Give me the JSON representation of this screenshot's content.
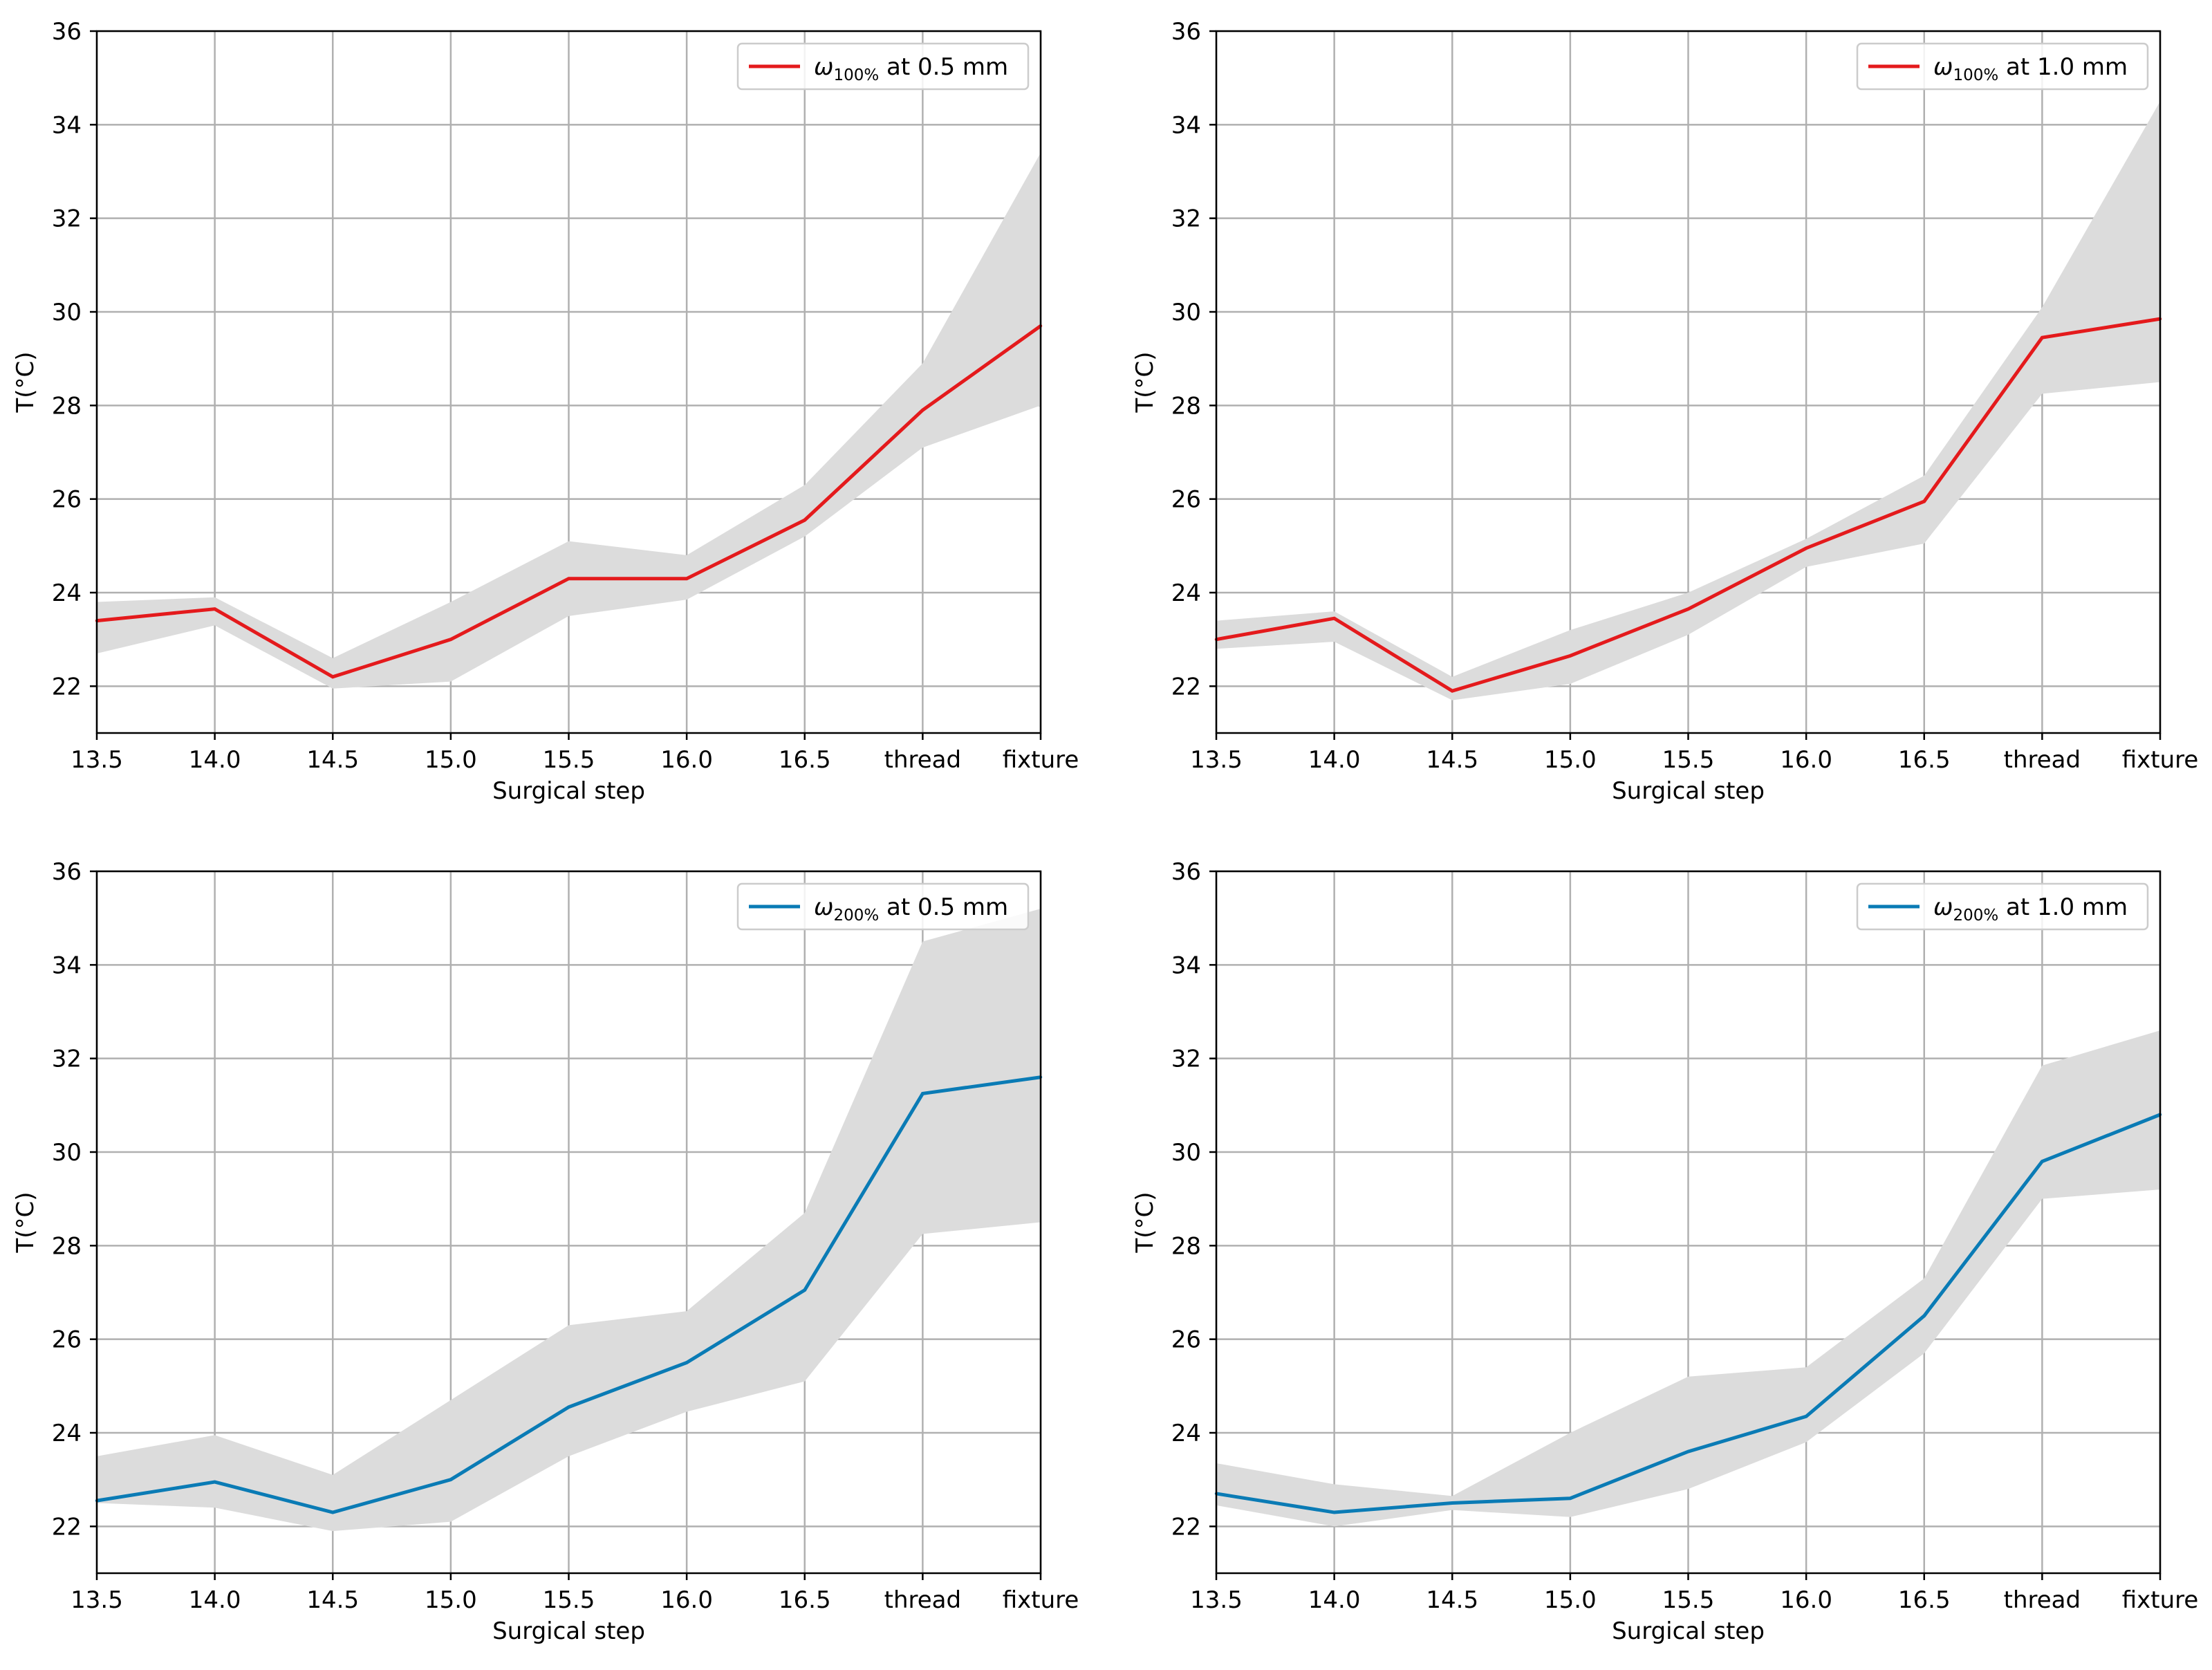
{
  "colors": {
    "red_series": "#e41a1c",
    "blue_series": "#0a7bb5",
    "band": "#dcdcdc",
    "grid": "#b0b0b0"
  },
  "chart_data": [
    {
      "type": "line",
      "panel": "top-left",
      "categories": [
        "13.5",
        "14.0",
        "14.5",
        "15.0",
        "15.5",
        "16.0",
        "16.5",
        "thread",
        "fixture"
      ],
      "series": [
        {
          "name": "ω100% at 0.5 mm",
          "legend_symbol": "ω",
          "legend_subscript": "100%",
          "legend_suffix": " at 0.5 mm",
          "color": "#e41a1c",
          "values": [
            23.4,
            23.65,
            22.2,
            23.0,
            24.3,
            24.3,
            25.55,
            27.9,
            29.7
          ],
          "band_upper": [
            23.8,
            23.9,
            22.6,
            23.8,
            25.1,
            24.8,
            26.3,
            28.9,
            33.4
          ],
          "band_lower": [
            22.7,
            23.3,
            21.95,
            22.1,
            23.5,
            23.85,
            25.2,
            27.1,
            28.0
          ]
        }
      ],
      "xlabel": "Surgical step",
      "ylabel": "T(°C)",
      "ylim": [
        21,
        36
      ],
      "yticks": [
        "22",
        "24",
        "26",
        "28",
        "30",
        "32",
        "34",
        "36"
      ],
      "grid": true,
      "legend": "top-right"
    },
    {
      "type": "line",
      "panel": "top-right",
      "categories": [
        "13.5",
        "14.0",
        "14.5",
        "15.0",
        "15.5",
        "16.0",
        "16.5",
        "thread",
        "fixture"
      ],
      "series": [
        {
          "name": "ω100% at 1.0 mm",
          "legend_symbol": "ω",
          "legend_subscript": "100%",
          "legend_suffix": " at 1.0 mm",
          "color": "#e41a1c",
          "values": [
            23.0,
            23.45,
            21.9,
            22.65,
            23.65,
            24.95,
            25.95,
            29.45,
            29.85
          ],
          "band_upper": [
            23.4,
            23.6,
            22.2,
            23.2,
            24.0,
            25.15,
            26.5,
            30.1,
            34.5
          ],
          "band_lower": [
            22.8,
            22.95,
            21.7,
            22.05,
            23.1,
            24.55,
            25.05,
            28.25,
            28.5
          ]
        }
      ],
      "xlabel": "Surgical step",
      "ylabel": "T(°C)",
      "ylim": [
        21,
        36
      ],
      "yticks": [
        "22",
        "24",
        "26",
        "28",
        "30",
        "32",
        "34",
        "36"
      ],
      "grid": true,
      "legend": "top-right"
    },
    {
      "type": "line",
      "panel": "bottom-left",
      "categories": [
        "13.5",
        "14.0",
        "14.5",
        "15.0",
        "15.5",
        "16.0",
        "16.5",
        "thread",
        "fixture"
      ],
      "series": [
        {
          "name": "ω200% at 0.5 mm",
          "legend_symbol": "ω",
          "legend_subscript": "200%",
          "legend_suffix": " at 0.5 mm",
          "color": "#0a7bb5",
          "values": [
            22.55,
            22.95,
            22.3,
            23.0,
            24.55,
            25.5,
            27.05,
            31.25,
            31.6
          ],
          "band_upper": [
            23.5,
            23.95,
            23.1,
            24.7,
            26.3,
            26.6,
            28.7,
            34.5,
            35.2
          ],
          "band_lower": [
            22.5,
            22.4,
            21.9,
            22.1,
            23.5,
            24.45,
            25.1,
            28.25,
            28.5
          ]
        }
      ],
      "xlabel": "Surgical step",
      "ylabel": "T(°C)",
      "ylim": [
        21,
        36
      ],
      "yticks": [
        "22",
        "24",
        "26",
        "28",
        "30",
        "32",
        "34",
        "36"
      ],
      "grid": true,
      "legend": "top-right"
    },
    {
      "type": "line",
      "panel": "bottom-right",
      "categories": [
        "13.5",
        "14.0",
        "14.5",
        "15.0",
        "15.5",
        "16.0",
        "16.5",
        "thread",
        "fixture"
      ],
      "series": [
        {
          "name": "ω200% at 1.0 mm",
          "legend_symbol": "ω",
          "legend_subscript": "200%",
          "legend_suffix": " at 1.0 mm",
          "color": "#0a7bb5",
          "values": [
            22.7,
            22.3,
            22.5,
            22.6,
            23.6,
            24.35,
            26.5,
            29.8,
            30.8
          ],
          "band_upper": [
            23.35,
            22.9,
            22.65,
            24.0,
            25.2,
            25.4,
            27.3,
            31.85,
            32.6
          ],
          "band_lower": [
            22.45,
            22.0,
            22.35,
            22.2,
            22.8,
            23.8,
            25.7,
            29.0,
            29.2
          ]
        }
      ],
      "xlabel": "Surgical step",
      "ylabel": "T(°C)",
      "ylim": [
        21,
        36
      ],
      "yticks": [
        "22",
        "24",
        "26",
        "28",
        "30",
        "32",
        "34",
        "36"
      ],
      "grid": true,
      "legend": "top-right"
    }
  ]
}
